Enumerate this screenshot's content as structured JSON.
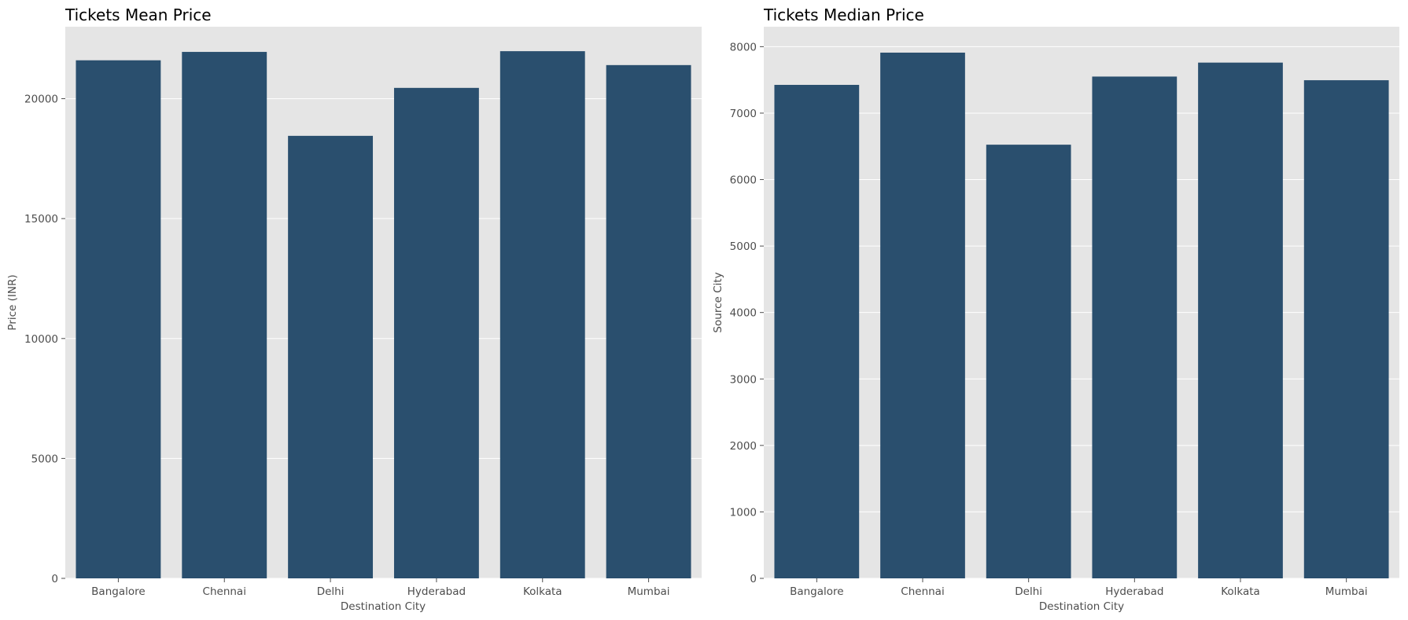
{
  "chart_data": [
    {
      "type": "bar",
      "title": "Tickets Mean Price",
      "xlabel": "Destination City",
      "ylabel": "Price (INR)",
      "categories": [
        "Bangalore",
        "Chennai",
        "Delhi",
        "Hyderabad",
        "Kolkata",
        "Mumbai"
      ],
      "values": [
        21600,
        21950,
        18450,
        20450,
        21980,
        21400
      ],
      "ylim": [
        0,
        23000
      ],
      "yticks": [
        0,
        5000,
        10000,
        15000,
        20000
      ],
      "grid": true,
      "legend": "none",
      "bar_color": "#2a4f6e",
      "background_color": "#e5e5e5"
    },
    {
      "type": "bar",
      "title": "Tickets Median Price",
      "xlabel": "Destination City",
      "ylabel": "Source City",
      "categories": [
        "Bangalore",
        "Chennai",
        "Delhi",
        "Hyderabad",
        "Kolkata",
        "Mumbai"
      ],
      "values": [
        7425,
        7910,
        6525,
        7550,
        7760,
        7495
      ],
      "ylim": [
        0,
        8300
      ],
      "yticks": [
        0,
        1000,
        2000,
        3000,
        4000,
        5000,
        6000,
        7000,
        8000
      ],
      "grid": true,
      "legend": "none",
      "bar_color": "#2a4f6e",
      "background_color": "#e5e5e5"
    }
  ]
}
